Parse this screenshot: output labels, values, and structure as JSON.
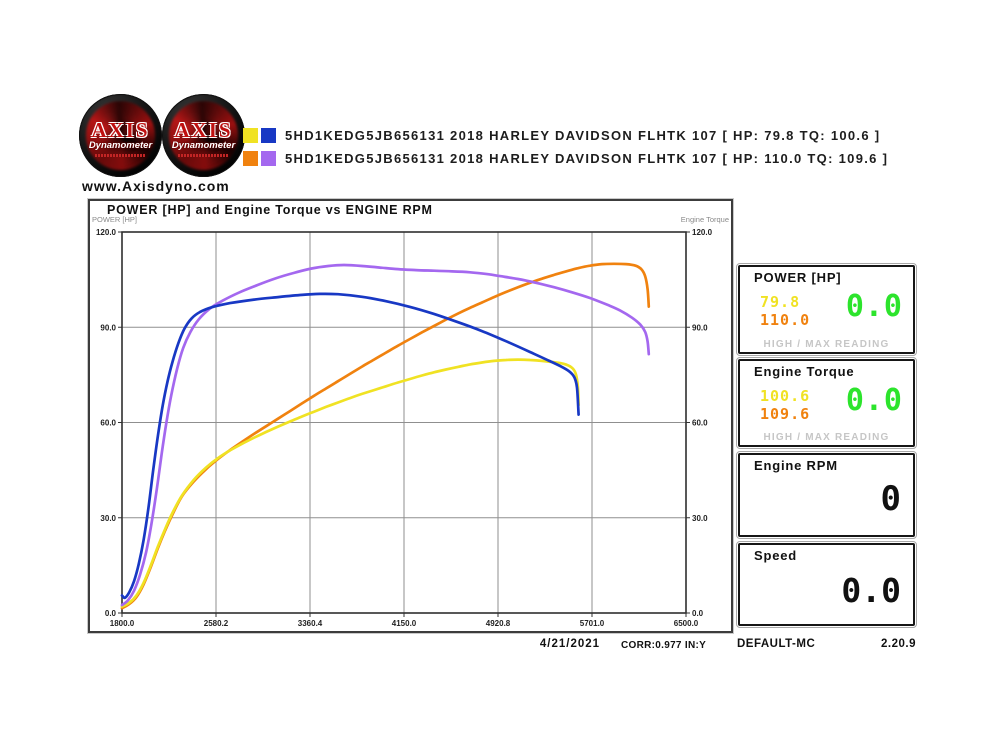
{
  "header": {
    "website": "www.Axisdyno.com",
    "logo": {
      "brand": "AXIS",
      "subtitle": "Dynamometer"
    },
    "legend": [
      {
        "colors": [
          "#f0e223",
          "#1838c4"
        ],
        "label": "5HD1KEDG5JB656131 2018 HARLEY DAVIDSON FLHTK 107 [ HP: 79.8 TQ: 100.6 ]"
      },
      {
        "colors": [
          "#f0820f",
          "#a468ef"
        ],
        "label": "5HD1KEDG5JB656131 2018 HARLEY DAVIDSON FLHTK 107 [ HP: 110.0 TQ: 109.6 ]"
      }
    ]
  },
  "chart_data": {
    "type": "line",
    "title": "POWER [HP] and Engine Torque vs ENGINE RPM",
    "xlabel": "Engine RPM",
    "ylabel_left": "POWER [HP]",
    "ylabel_right": "Engine Torque",
    "xlim": [
      1800,
      6500
    ],
    "ylim": [
      0,
      120
    ],
    "grid": true,
    "x_ticks": [
      "1800.0",
      "2580.2",
      "3360.4",
      "4150.0",
      "4920.8",
      "5701.0",
      "6500.0"
    ],
    "y_ticks": [
      "120.0",
      "90.0",
      "60.0",
      "30.0",
      "0.0"
    ],
    "series": [
      {
        "name": "run2-power-hp",
        "color": "#f0820f",
        "points": [
          [
            1800,
            1.5
          ],
          [
            1860,
            2.8
          ],
          [
            1920,
            5
          ],
          [
            1980,
            9
          ],
          [
            2040,
            14.5
          ],
          [
            2100,
            20.5
          ],
          [
            2160,
            26
          ],
          [
            2220,
            31
          ],
          [
            2300,
            36.8
          ],
          [
            2400,
            41.5
          ],
          [
            2500,
            45.3
          ],
          [
            2600,
            48.5
          ],
          [
            2700,
            51.3
          ],
          [
            2800,
            53.9
          ],
          [
            2900,
            56.4
          ],
          [
            3000,
            58.8
          ],
          [
            3100,
            61.2
          ],
          [
            3200,
            63.6
          ],
          [
            3300,
            66
          ],
          [
            3400,
            68.4
          ],
          [
            3500,
            70.7
          ],
          [
            3600,
            73
          ],
          [
            3700,
            75.3
          ],
          [
            3800,
            77.6
          ],
          [
            3900,
            79.8
          ],
          [
            4000,
            82
          ],
          [
            4100,
            84.2
          ],
          [
            4200,
            86.3
          ],
          [
            4300,
            88.4
          ],
          [
            4400,
            90.4
          ],
          [
            4500,
            92.4
          ],
          [
            4600,
            94.3
          ],
          [
            4700,
            96.1
          ],
          [
            4800,
            97.8
          ],
          [
            4900,
            99.5
          ],
          [
            5000,
            101.1
          ],
          [
            5100,
            102.6
          ],
          [
            5200,
            104
          ],
          [
            5300,
            105.3
          ],
          [
            5400,
            106.5
          ],
          [
            5500,
            107.6
          ],
          [
            5600,
            108.6
          ],
          [
            5700,
            109.4
          ],
          [
            5800,
            109.9
          ],
          [
            5900,
            110
          ],
          [
            6000,
            109.9
          ],
          [
            6080,
            109.4
          ],
          [
            6130,
            108.2
          ],
          [
            6160,
            106
          ],
          [
            6180,
            102
          ],
          [
            6190,
            96.5
          ]
        ]
      },
      {
        "name": "run1-power-hp",
        "color": "#f0e223",
        "points": [
          [
            1800,
            2
          ],
          [
            1860,
            3.2
          ],
          [
            1920,
            5.5
          ],
          [
            1980,
            9.5
          ],
          [
            2040,
            15
          ],
          [
            2100,
            21
          ],
          [
            2160,
            26.5
          ],
          [
            2220,
            31.5
          ],
          [
            2300,
            37
          ],
          [
            2400,
            42
          ],
          [
            2500,
            45.8
          ],
          [
            2600,
            48.8
          ],
          [
            2700,
            51.2
          ],
          [
            2800,
            53.3
          ],
          [
            2900,
            55.2
          ],
          [
            3000,
            57
          ],
          [
            3100,
            58.7
          ],
          [
            3200,
            60.3
          ],
          [
            3300,
            61.9
          ],
          [
            3400,
            63.4
          ],
          [
            3500,
            64.9
          ],
          [
            3600,
            66.3
          ],
          [
            3700,
            67.7
          ],
          [
            3800,
            69
          ],
          [
            3900,
            70.2
          ],
          [
            4000,
            71.4
          ],
          [
            4100,
            72.6
          ],
          [
            4200,
            73.7
          ],
          [
            4300,
            74.8
          ],
          [
            4400,
            75.8
          ],
          [
            4500,
            76.7
          ],
          [
            4600,
            77.5
          ],
          [
            4700,
            78.3
          ],
          [
            4800,
            78.9
          ],
          [
            4900,
            79.4
          ],
          [
            5000,
            79.7
          ],
          [
            5100,
            79.8
          ],
          [
            5200,
            79.7
          ],
          [
            5300,
            79.4
          ],
          [
            5400,
            79
          ],
          [
            5480,
            78.5
          ],
          [
            5545,
            77.4
          ],
          [
            5580,
            75.5
          ],
          [
            5598,
            71.5
          ],
          [
            5605,
            65.5
          ]
        ]
      },
      {
        "name": "run2-torque",
        "color": "#a468ef",
        "points": [
          [
            1800,
            2.5
          ],
          [
            1850,
            4
          ],
          [
            1900,
            7
          ],
          [
            1950,
            12
          ],
          [
            2000,
            19
          ],
          [
            2045,
            28
          ],
          [
            2090,
            39
          ],
          [
            2130,
            50
          ],
          [
            2170,
            60
          ],
          [
            2210,
            68.5
          ],
          [
            2260,
            77
          ],
          [
            2310,
            83.5
          ],
          [
            2370,
            88.5
          ],
          [
            2440,
            92.5
          ],
          [
            2530,
            95.8
          ],
          [
            2640,
            98.4
          ],
          [
            2780,
            101
          ],
          [
            2930,
            103.3
          ],
          [
            3080,
            105.4
          ],
          [
            3230,
            107.1
          ],
          [
            3380,
            108.5
          ],
          [
            3520,
            109.3
          ],
          [
            3650,
            109.6
          ],
          [
            3800,
            109.3
          ],
          [
            3950,
            108.8
          ],
          [
            4100,
            108.3
          ],
          [
            4250,
            108
          ],
          [
            4400,
            107.8
          ],
          [
            4550,
            107.6
          ],
          [
            4700,
            107.3
          ],
          [
            4850,
            106.7
          ],
          [
            4950,
            106.1
          ],
          [
            5100,
            105.2
          ],
          [
            5250,
            104
          ],
          [
            5400,
            102.6
          ],
          [
            5550,
            101
          ],
          [
            5700,
            99.2
          ],
          [
            5850,
            97
          ],
          [
            5950,
            95.3
          ],
          [
            6050,
            93
          ],
          [
            6120,
            90.8
          ],
          [
            6160,
            88.5
          ],
          [
            6180,
            85.5
          ],
          [
            6190,
            81.5
          ]
        ]
      },
      {
        "name": "run1-torque",
        "color": "#1838c4",
        "points": [
          [
            1800,
            5.5
          ],
          [
            1825,
            4.8
          ],
          [
            1860,
            6.5
          ],
          [
            1900,
            10
          ],
          [
            1940,
            15.5
          ],
          [
            1980,
            23
          ],
          [
            2020,
            33
          ],
          [
            2060,
            45
          ],
          [
            2100,
            56
          ],
          [
            2140,
            65.5
          ],
          [
            2180,
            73
          ],
          [
            2220,
            79
          ],
          [
            2270,
            85
          ],
          [
            2320,
            89.5
          ],
          [
            2380,
            92.8
          ],
          [
            2450,
            94.8
          ],
          [
            2550,
            96.3
          ],
          [
            2700,
            97.6
          ],
          [
            2900,
            98.7
          ],
          [
            3100,
            99.5
          ],
          [
            3300,
            100.2
          ],
          [
            3450,
            100.5
          ],
          [
            3600,
            100.4
          ],
          [
            3800,
            99.6
          ],
          [
            4000,
            98.2
          ],
          [
            4200,
            96.4
          ],
          [
            4400,
            94.2
          ],
          [
            4600,
            91.6
          ],
          [
            4800,
            88.8
          ],
          [
            5000,
            85.6
          ],
          [
            5200,
            82.2
          ],
          [
            5350,
            79.6
          ],
          [
            5460,
            77.6
          ],
          [
            5530,
            76
          ],
          [
            5570,
            74.2
          ],
          [
            5592,
            71
          ],
          [
            5605,
            62.5
          ]
        ]
      }
    ]
  },
  "panels": {
    "power": {
      "title": "POWER [HP]",
      "run1": "79.8",
      "run2": "110.0",
      "live": "0.0",
      "note": "HIGH / MAX READING"
    },
    "torque": {
      "title": "Engine Torque",
      "run1": "100.6",
      "run2": "109.6",
      "live": "0.0",
      "note": "HIGH / MAX READING"
    },
    "rpm": {
      "title": "Engine RPM",
      "live": "0"
    },
    "speed": {
      "title": "Speed",
      "live": "0.0"
    }
  },
  "footer": {
    "date": "4/21/2021",
    "corr": "CORR:0.977 IN:Y",
    "profile": "DEFAULT-MC",
    "version": "2.20.9"
  },
  "colors": {
    "run1_power": "#f0e223",
    "run1_torque": "#1838c4",
    "run2_power": "#f0820f",
    "run2_torque": "#a468ef",
    "live_green": "#2ce42c",
    "grid": "#8f8f8f"
  }
}
